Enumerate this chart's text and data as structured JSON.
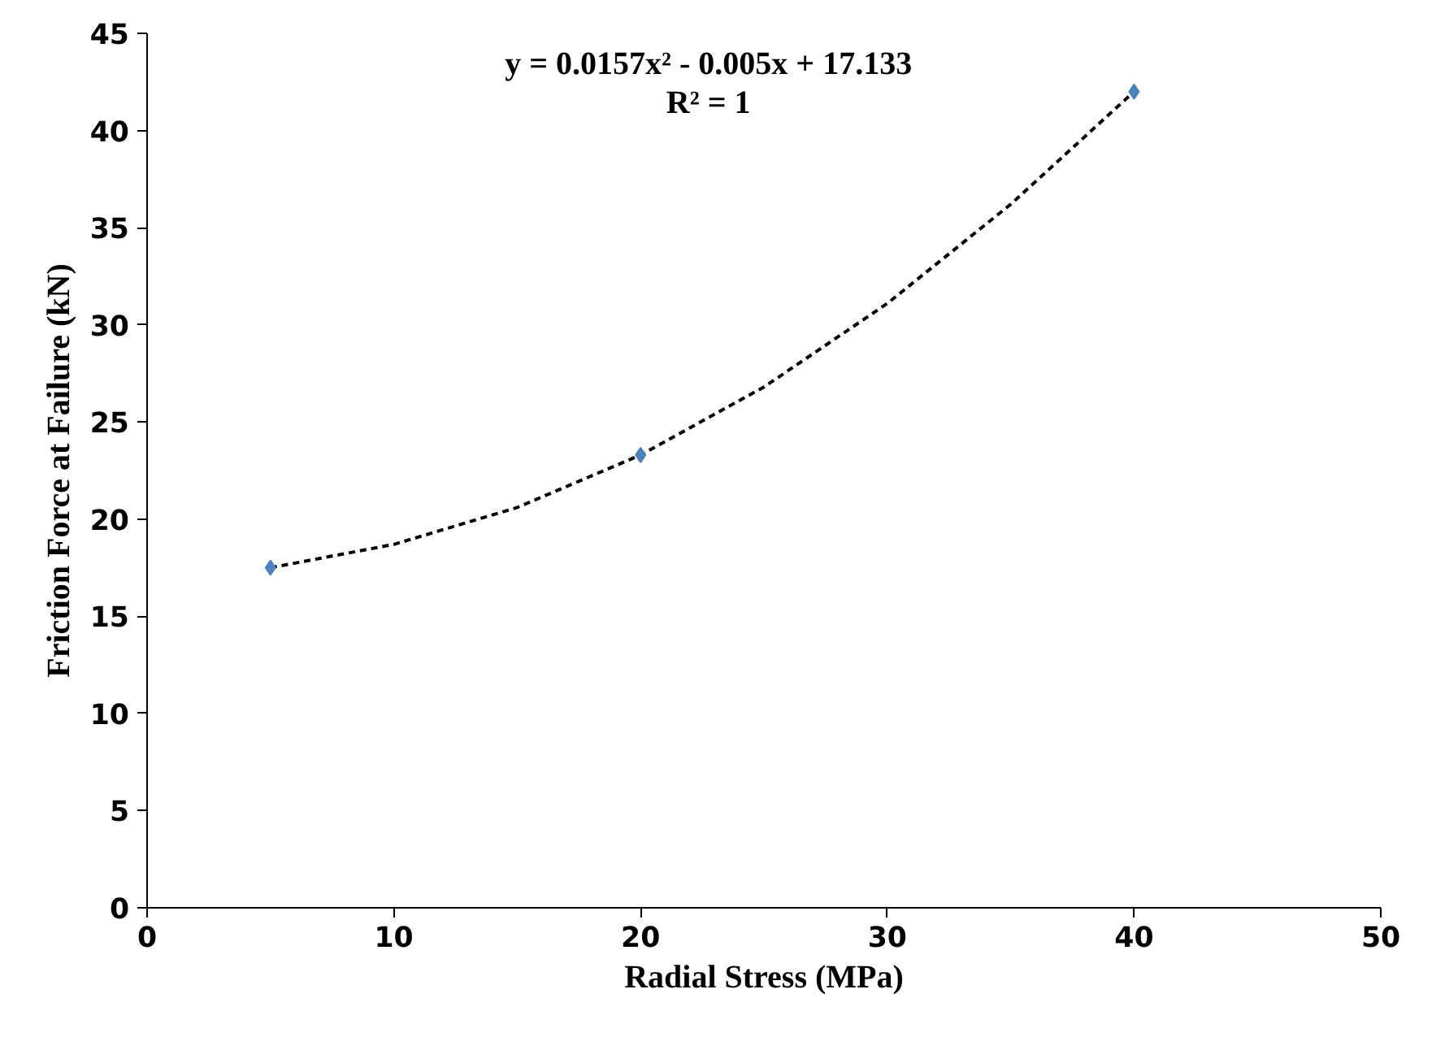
{
  "chart_data": {
    "type": "scatter",
    "xlabel": "Radial Stress (MPa)",
    "ylabel": "Friction Force at Failure (kN)",
    "annotations": [
      "y = 0.0157x² - 0.005x + 17.133",
      "R² = 1"
    ],
    "xlim": [
      0,
      50
    ],
    "xticks": [
      0,
      10,
      20,
      30,
      40,
      50
    ],
    "ylim": [
      0,
      45
    ],
    "yticks": [
      0,
      5,
      10,
      15,
      20,
      25,
      30,
      35,
      40,
      45
    ],
    "marker": "diamond",
    "series": [
      {
        "color": "#4f81bd",
        "x": [
          5,
          20,
          40
        ],
        "values": [
          17.5,
          23.3,
          42.0
        ]
      },
      {
        "type": "line",
        "color": "#000000",
        "line_style": "dashed",
        "marker": "none",
        "x": [
          5,
          10,
          15,
          20,
          25,
          30,
          35,
          40
        ],
        "values": [
          17.5,
          18.7,
          20.6,
          23.3,
          26.8,
          31.1,
          36.2,
          42.0
        ]
      }
    ]
  }
}
